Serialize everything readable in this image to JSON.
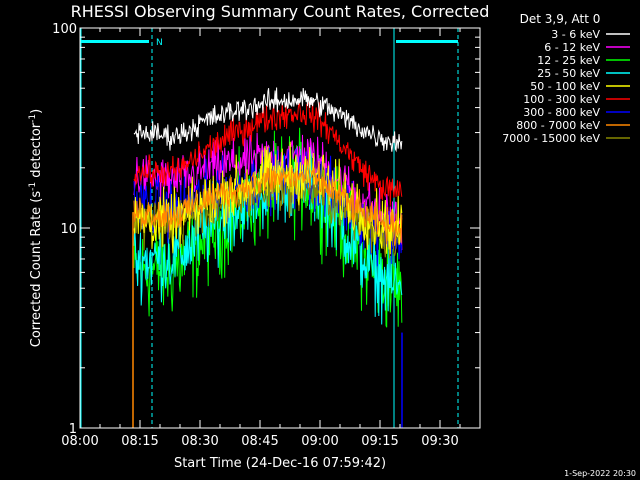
{
  "chart_data": {
    "type": "line",
    "title": "RHESSI Observing Summary Count Rates, Corrected",
    "xlabel": "Start Time (24-Dec-16 07:59:42)",
    "ylabel_main": "Corrected Count Rate (s",
    "ylabel_sup": "-1",
    "ylabel_mid": " detector",
    "ylabel_end": ")",
    "timestamp": "1-Sep-2022 20:30",
    "scale": "log",
    "ylim": [
      1,
      100
    ],
    "xlim_minutes": [
      0,
      100
    ],
    "x_ticks": [
      {
        "m": 0,
        "label": "08:00"
      },
      {
        "m": 15,
        "label": "08:15"
      },
      {
        "m": 30,
        "label": "08:30"
      },
      {
        "m": 45,
        "label": "08:45"
      },
      {
        "m": 60,
        "label": "09:00"
      },
      {
        "m": 75,
        "label": "09:15"
      },
      {
        "m": 90,
        "label": "09:30"
      }
    ],
    "y_ticks": [
      {
        "v": 1,
        "label": "1"
      },
      {
        "v": 10,
        "label": "10"
      },
      {
        "v": 100,
        "label": "100"
      }
    ],
    "legend_title": "Det 3,9, Att 0",
    "legend_position": "top-right",
    "night_marker": "N",
    "data_window_minutes": [
      13.5,
      80.5
    ],
    "night_start_minutes": 18,
    "night_end_minutes": 94.5,
    "series": [
      {
        "name": "3 - 6 keV",
        "color": "#ffffff",
        "start": 30,
        "peak": 44,
        "end": 27,
        "noise": 0.05
      },
      {
        "name": "6 - 12 keV",
        "color": "#ff00ff",
        "start": 18,
        "peak": 23,
        "end": 11,
        "noise": 0.1
      },
      {
        "name": "12 - 25 keV",
        "color": "#00ff00",
        "start": 6,
        "peak": 17,
        "end": 5,
        "noise": 0.2
      },
      {
        "name": "25 - 50 keV",
        "color": "#00ffff",
        "start": 7,
        "peak": 17,
        "end": 5,
        "noise": 0.15
      },
      {
        "name": "50 - 100 keV",
        "color": "#ffff00",
        "start": 11,
        "peak": 19,
        "end": 10,
        "noise": 0.12
      },
      {
        "name": "100 - 300 keV",
        "color": "#ff0000",
        "start": 19,
        "peak": 38,
        "end": 15,
        "noise": 0.06
      },
      {
        "name": "300 - 800 keV",
        "color": "#0000ff",
        "start": 13,
        "peak": 18,
        "end": 9,
        "noise": 0.12
      },
      {
        "name": "800 - 7000 keV",
        "color": "#ff8800",
        "start": 12,
        "peak": 18,
        "end": 10,
        "noise": 0.07
      },
      {
        "name": "7000 - 15000 keV",
        "color": "#888800",
        "start": 11,
        "peak": 16,
        "end": 9,
        "noise": 0.1
      }
    ]
  }
}
